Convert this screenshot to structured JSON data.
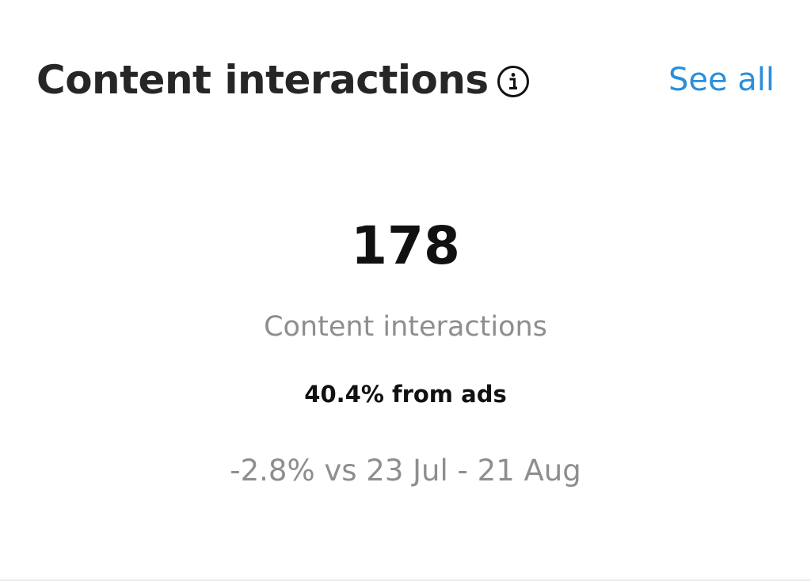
{
  "header": {
    "title": "Content interactions",
    "link": "See all"
  },
  "metric": {
    "value": "178",
    "label": "Content interactions",
    "ads_share": "40.4% from ads",
    "comparison": "-2.8% vs 23 Jul - 21 Aug"
  }
}
